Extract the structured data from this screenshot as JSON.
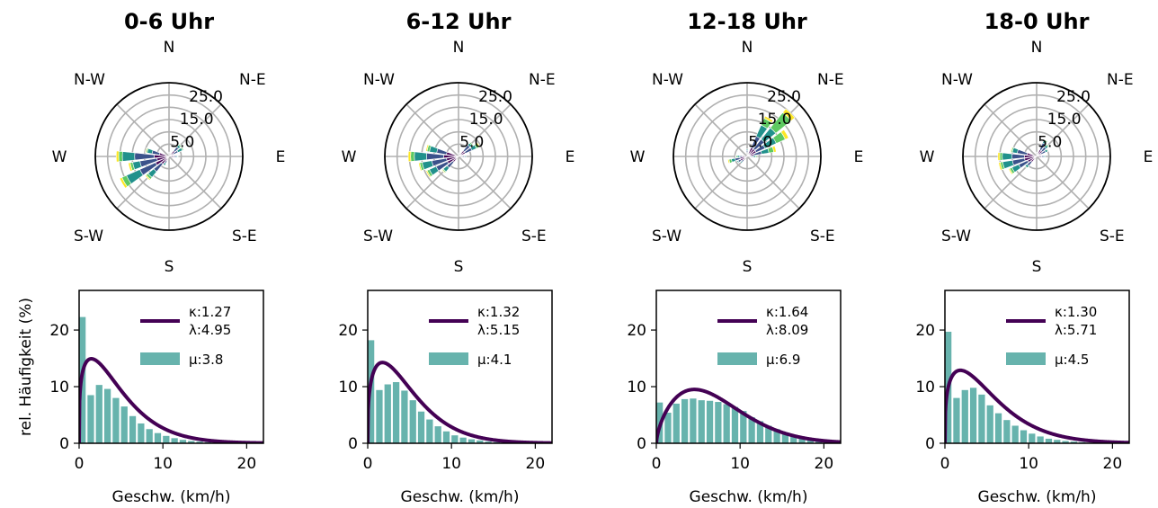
{
  "ylabel": "rel. Häufigkeit (%)",
  "xlabel": "Geschw. (km/h)",
  "directions": [
    "N",
    "N-E",
    "E",
    "S-E",
    "S",
    "S-W",
    "W",
    "N-W"
  ],
  "radial_ticks": [
    "5.0",
    "15.0",
    "25.0"
  ],
  "colors": {
    "weibull": "#440154",
    "hist": "#67b3ad",
    "rose": [
      "#440154",
      "#3b528b",
      "#21918c",
      "#5ec962",
      "#fde725"
    ]
  },
  "chart_data": [
    {
      "type": "polar-bar",
      "title": "0-6 Uhr",
      "rmax": 30,
      "speed_bins": 5,
      "petals": [
        {
          "angle": 270,
          "segments": [
            6,
            8,
            5,
            1.5,
            1
          ]
        },
        {
          "angle": 255,
          "segments": [
            5,
            7,
            3,
            1,
            0.8
          ]
        },
        {
          "angle": 240,
          "segments": [
            6,
            7,
            6,
            2,
            1
          ]
        },
        {
          "angle": 225,
          "segments": [
            4,
            4,
            3,
            1,
            0.5
          ]
        },
        {
          "angle": 285,
          "segments": [
            4,
            3,
            2,
            0.5,
            0.3
          ]
        },
        {
          "angle": 60,
          "segments": [
            2,
            2,
            2,
            0.5,
            0.2
          ]
        },
        {
          "angle": 45,
          "segments": [
            3,
            2,
            1,
            0.5,
            0.2
          ]
        },
        {
          "angle": 90,
          "segments": [
            2,
            1,
            0.5,
            0.2,
            0
          ]
        },
        {
          "angle": 210,
          "segments": [
            2,
            1,
            1,
            0.3,
            0
          ]
        },
        {
          "angle": 0,
          "segments": [
            1,
            0.5,
            0.3,
            0,
            0
          ]
        }
      ]
    },
    {
      "type": "polar-bar",
      "title": "6-12 Uhr",
      "rmax": 30,
      "speed_bins": 5,
      "petals": [
        {
          "angle": 270,
          "segments": [
            6,
            7,
            5,
            1.5,
            1
          ]
        },
        {
          "angle": 255,
          "segments": [
            5,
            6,
            4,
            1,
            0.5
          ]
        },
        {
          "angle": 240,
          "segments": [
            5,
            5,
            3,
            1,
            0.5
          ]
        },
        {
          "angle": 285,
          "segments": [
            5,
            4,
            3,
            1,
            0.5
          ]
        },
        {
          "angle": 225,
          "segments": [
            3,
            3,
            2,
            0.5,
            0.3
          ]
        },
        {
          "angle": 60,
          "segments": [
            3,
            3,
            2,
            1,
            0.5
          ]
        },
        {
          "angle": 45,
          "segments": [
            3,
            3,
            1,
            0.5,
            0
          ]
        },
        {
          "angle": 90,
          "segments": [
            1.5,
            1,
            0.5,
            0,
            0
          ]
        },
        {
          "angle": 0,
          "segments": [
            1,
            0.5,
            0,
            0,
            0
          ]
        }
      ]
    },
    {
      "type": "polar-bar",
      "title": "12-18 Uhr",
      "rmax": 30,
      "speed_bins": 5,
      "petals": [
        {
          "angle": 45,
          "segments": [
            4,
            5,
            6,
            8,
            2
          ]
        },
        {
          "angle": 30,
          "segments": [
            4,
            5,
            5,
            3,
            1
          ]
        },
        {
          "angle": 60,
          "segments": [
            4,
            4,
            5,
            4,
            1.5
          ]
        },
        {
          "angle": 75,
          "segments": [
            3,
            3,
            3,
            2,
            1
          ]
        },
        {
          "angle": 255,
          "segments": [
            3,
            2,
            1.5,
            1,
            0.5
          ]
        },
        {
          "angle": 240,
          "segments": [
            3,
            1,
            0.5,
            0,
            0
          ]
        },
        {
          "angle": 270,
          "segments": [
            2,
            1,
            1,
            0.5,
            0.2
          ]
        },
        {
          "angle": 225,
          "segments": [
            2,
            1,
            0.5,
            0,
            0
          ]
        },
        {
          "angle": 90,
          "segments": [
            1.5,
            1,
            1,
            0.5,
            0
          ]
        },
        {
          "angle": 0,
          "segments": [
            1.5,
            1,
            0.5,
            0,
            0
          ]
        }
      ]
    },
    {
      "type": "polar-bar",
      "title": "18-0 Uhr",
      "rmax": 30,
      "speed_bins": 5,
      "petals": [
        {
          "angle": 270,
          "segments": [
            5,
            5,
            4,
            1,
            0.8
          ]
        },
        {
          "angle": 255,
          "segments": [
            5,
            5,
            4,
            1,
            0.7
          ]
        },
        {
          "angle": 240,
          "segments": [
            4,
            4,
            3,
            1,
            0.5
          ]
        },
        {
          "angle": 285,
          "segments": [
            4,
            4,
            2,
            0.5,
            0.3
          ]
        },
        {
          "angle": 30,
          "segments": [
            3,
            3,
            1,
            0.5,
            0.2
          ]
        },
        {
          "angle": 45,
          "segments": [
            3,
            2,
            1,
            0.5,
            0.2
          ]
        },
        {
          "angle": 60,
          "segments": [
            2,
            2,
            1,
            0.3,
            0
          ]
        },
        {
          "angle": 225,
          "segments": [
            3,
            2,
            1,
            0.3,
            0
          ]
        },
        {
          "angle": 90,
          "segments": [
            2,
            1,
            0.5,
            0,
            0
          ]
        },
        {
          "angle": 0,
          "segments": [
            1,
            0.5,
            0.3,
            0,
            0
          ]
        }
      ]
    },
    {
      "type": "bar",
      "subtype": "histogram-with-weibull-fit",
      "xlim": [
        0,
        22
      ],
      "ylim": [
        0,
        27
      ],
      "xticks": [
        0,
        10,
        20
      ],
      "yticks": [
        0,
        10,
        20
      ],
      "bin_width": 1,
      "values": [
        22.3,
        8.5,
        10.3,
        9.6,
        8.0,
        6.5,
        4.8,
        3.5,
        2.5,
        1.8,
        1.3,
        0.9,
        0.6,
        0.4,
        0.3,
        0.2,
        0.1,
        0.1,
        0,
        0,
        0,
        0
      ],
      "fit": {
        "kappa": 1.27,
        "lambda": 4.95
      },
      "legend_line": [
        "κ:1.27",
        "λ:4.95"
      ],
      "legend_bar": "μ:3.8"
    },
    {
      "type": "bar",
      "subtype": "histogram-with-weibull-fit",
      "xlim": [
        0,
        22
      ],
      "ylim": [
        0,
        27
      ],
      "xticks": [
        0,
        10,
        20
      ],
      "yticks": [
        0,
        10,
        20
      ],
      "bin_width": 1,
      "values": [
        18.2,
        9.4,
        10.4,
        10.8,
        9.3,
        7.6,
        5.6,
        4.2,
        3.0,
        2.1,
        1.4,
        1.0,
        0.7,
        0.5,
        0.3,
        0.2,
        0.1,
        0.1,
        0,
        0,
        0,
        0
      ],
      "fit": {
        "kappa": 1.32,
        "lambda": 5.15
      },
      "legend_line": [
        "κ:1.32",
        "λ:5.15"
      ],
      "legend_bar": "μ:4.1"
    },
    {
      "type": "bar",
      "subtype": "histogram-with-weibull-fit",
      "xlim": [
        0,
        22
      ],
      "ylim": [
        0,
        27
      ],
      "xticks": [
        0,
        10,
        20
      ],
      "yticks": [
        0,
        10,
        20
      ],
      "bin_width": 1,
      "values": [
        7.2,
        5.4,
        7.0,
        7.8,
        7.9,
        7.6,
        7.5,
        7.3,
        6.9,
        6.4,
        5.7,
        4.6,
        3.9,
        3.1,
        2.5,
        1.9,
        1.4,
        1.0,
        0.7,
        0.5,
        0.3,
        0.2
      ],
      "fit": {
        "kappa": 1.64,
        "lambda": 8.09
      },
      "legend_line": [
        "κ:1.64",
        "λ:8.09"
      ],
      "legend_bar": "μ:6.9"
    },
    {
      "type": "bar",
      "subtype": "histogram-with-weibull-fit",
      "xlim": [
        0,
        22
      ],
      "ylim": [
        0,
        27
      ],
      "xticks": [
        0,
        10,
        20
      ],
      "yticks": [
        0,
        10,
        20
      ],
      "bin_width": 1,
      "values": [
        19.7,
        8.0,
        9.4,
        9.8,
        8.6,
        6.7,
        5.3,
        4.1,
        3.1,
        2.3,
        1.7,
        1.2,
        0.8,
        0.6,
        0.4,
        0.3,
        0.2,
        0.1,
        0.1,
        0,
        0,
        0
      ],
      "fit": {
        "kappa": 1.3,
        "lambda": 5.71
      },
      "legend_line": [
        "κ:1.30",
        "λ:5.71"
      ],
      "legend_bar": "μ:4.5"
    }
  ]
}
